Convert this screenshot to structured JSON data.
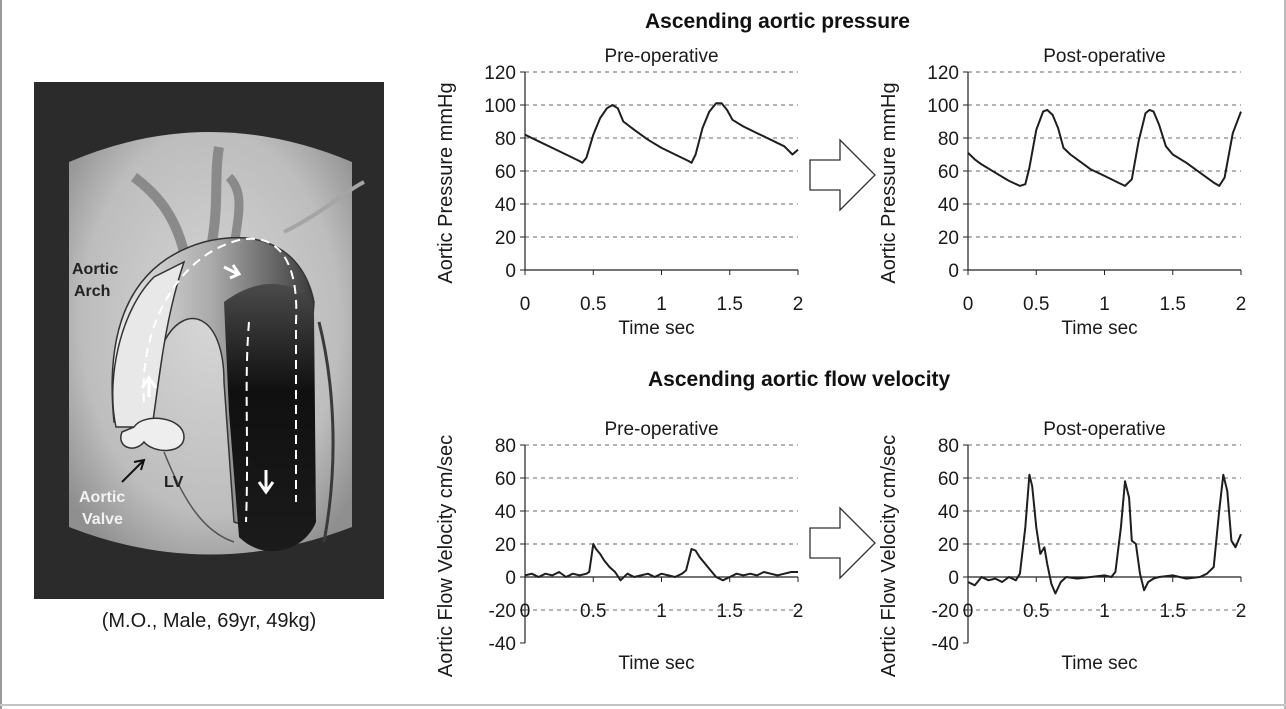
{
  "figure": {
    "caption": "(M.O., Male, 69yr, 49kg)",
    "image_labels": {
      "aortic_arch": [
        "Aortic",
        "Arch"
      ],
      "aortic_valve": [
        "Aortic",
        "Valve"
      ],
      "lv": "LV"
    },
    "section_titles": {
      "pressure": "Ascending aortic pressure",
      "flow": "Ascending aortic flow velocity"
    }
  },
  "colors": {
    "line": "#1e1e1e",
    "grid": "#6a6a6a",
    "angiogram_frame": "#2b2b2b"
  },
  "chart_data": [
    {
      "id": "pressure-pre",
      "type": "line",
      "title": "Pre-operative",
      "xlabel": "Time sec",
      "ylabel": "Aortic Pressure mmHg",
      "xlim": [
        0,
        2
      ],
      "ylim": [
        0,
        120
      ],
      "xticks": [
        0,
        0.5,
        1,
        1.5,
        2
      ],
      "xtick_labels": [
        "0",
        "0.5",
        "1",
        "1.5",
        "2"
      ],
      "yticks": [
        0,
        20,
        40,
        60,
        80,
        100,
        120
      ],
      "ytick_labels": [
        "0",
        "20",
        "40",
        "60",
        "80",
        "100",
        "120"
      ],
      "grid": true,
      "series": [
        {
          "x": [
            0,
            0.05,
            0.1,
            0.2,
            0.3,
            0.4,
            0.42,
            0.45,
            0.5,
            0.55,
            0.6,
            0.64,
            0.68,
            0.72,
            0.8,
            0.9,
            1.0,
            1.1,
            1.2,
            1.22,
            1.25,
            1.3,
            1.35,
            1.4,
            1.44,
            1.48,
            1.52,
            1.6,
            1.7,
            1.8,
            1.9,
            1.96,
            2.0
          ],
          "y": [
            82,
            80,
            78,
            74,
            70,
            66,
            65,
            68,
            82,
            92,
            98,
            100,
            98,
            90,
            85,
            79,
            74,
            70,
            66,
            65,
            70,
            86,
            96,
            101,
            101,
            97,
            91,
            87,
            83,
            79,
            75,
            70,
            73
          ]
        }
      ]
    },
    {
      "id": "pressure-post",
      "type": "line",
      "title": "Post-operative",
      "xlabel": "Time sec",
      "ylabel": "Aortic Pressure mmHg",
      "xlim": [
        0,
        2
      ],
      "ylim": [
        0,
        120
      ],
      "xticks": [
        0,
        0.5,
        1,
        1.5,
        2
      ],
      "xtick_labels": [
        "0",
        "0.5",
        "1",
        "1.5",
        "2"
      ],
      "yticks": [
        0,
        20,
        40,
        60,
        80,
        100,
        120
      ],
      "ytick_labels": [
        "0",
        "20",
        "40",
        "60",
        "80",
        "100",
        "120"
      ],
      "grid": true,
      "series": [
        {
          "x": [
            0,
            0.05,
            0.1,
            0.2,
            0.3,
            0.38,
            0.42,
            0.45,
            0.5,
            0.55,
            0.58,
            0.62,
            0.66,
            0.7,
            0.75,
            0.8,
            0.9,
            1.0,
            1.1,
            1.15,
            1.2,
            1.25,
            1.3,
            1.33,
            1.36,
            1.4,
            1.45,
            1.5,
            1.6,
            1.7,
            1.8,
            1.84,
            1.88,
            1.94,
            2.0
          ],
          "y": [
            71,
            67,
            64,
            59,
            54,
            51,
            52,
            62,
            85,
            96,
            97,
            94,
            86,
            74,
            70,
            67,
            61,
            57,
            53,
            51,
            55,
            78,
            95,
            97,
            96,
            88,
            75,
            70,
            65,
            59,
            53,
            51,
            56,
            83,
            96
          ]
        }
      ]
    },
    {
      "id": "flow-pre",
      "type": "line",
      "title": "Pre-operative",
      "xlabel": "Time sec",
      "ylabel": "Aortic Flow Velocity cm/sec",
      "xlim": [
        0,
        2
      ],
      "ylim": [
        -40,
        80
      ],
      "xticks": [
        0,
        0.5,
        1,
        1.5,
        2
      ],
      "xtick_labels": [
        "0",
        "0.5",
        "1",
        "1.5",
        "2"
      ],
      "yticks": [
        -40,
        -20,
        0,
        20,
        40,
        60,
        80
      ],
      "ytick_labels": [
        "-40",
        "-20",
        "0",
        "20",
        "40",
        "60",
        "80"
      ],
      "grid": true,
      "series": [
        {
          "x": [
            0,
            0.05,
            0.1,
            0.15,
            0.2,
            0.25,
            0.3,
            0.35,
            0.4,
            0.45,
            0.47,
            0.5,
            0.52,
            0.55,
            0.58,
            0.62,
            0.66,
            0.7,
            0.75,
            0.8,
            0.85,
            0.9,
            0.95,
            1.0,
            1.05,
            1.1,
            1.15,
            1.18,
            1.22,
            1.25,
            1.28,
            1.32,
            1.36,
            1.4,
            1.45,
            1.5,
            1.55,
            1.6,
            1.65,
            1.7,
            1.75,
            1.8,
            1.85,
            1.9,
            1.95,
            2.0
          ],
          "y": [
            1,
            2,
            0,
            2,
            1,
            3,
            0,
            2,
            1,
            2,
            3,
            20,
            17,
            14,
            10,
            6,
            3,
            -2,
            2,
            0,
            1,
            2,
            0,
            2,
            1,
            0,
            2,
            4,
            17,
            16,
            12,
            8,
            4,
            0,
            -2,
            0,
            2,
            1,
            2,
            1,
            3,
            2,
            1,
            2,
            3,
            3
          ]
        }
      ]
    },
    {
      "id": "flow-post",
      "type": "line",
      "title": "Post-operative",
      "xlabel": "Time sec",
      "ylabel": "Aortic Flow Velocity cm/sec",
      "xlim": [
        0,
        2
      ],
      "ylim": [
        -40,
        80
      ],
      "xticks": [
        0,
        0.5,
        1,
        1.5,
        2
      ],
      "xtick_labels": [
        "0",
        "0.5",
        "1",
        "1.5",
        "2"
      ],
      "yticks": [
        -40,
        -20,
        0,
        20,
        40,
        60,
        80
      ],
      "ytick_labels": [
        "-40",
        "-20",
        "0",
        "20",
        "40",
        "60",
        "80"
      ],
      "grid": true,
      "series": [
        {
          "x": [
            0,
            0.05,
            0.1,
            0.15,
            0.2,
            0.25,
            0.3,
            0.35,
            0.38,
            0.42,
            0.45,
            0.47,
            0.5,
            0.53,
            0.56,
            0.58,
            0.61,
            0.64,
            0.68,
            0.72,
            0.8,
            0.9,
            1.0,
            1.05,
            1.08,
            1.12,
            1.15,
            1.18,
            1.2,
            1.23,
            1.26,
            1.29,
            1.32,
            1.36,
            1.4,
            1.5,
            1.6,
            1.7,
            1.75,
            1.8,
            1.84,
            1.87,
            1.9,
            1.93,
            1.96,
            2.0
          ],
          "y": [
            -3,
            -5,
            0,
            -2,
            -1,
            -3,
            0,
            -2,
            2,
            30,
            62,
            55,
            30,
            14,
            18,
            8,
            -4,
            -10,
            -3,
            0,
            -1,
            0,
            1,
            0,
            3,
            30,
            58,
            48,
            22,
            20,
            2,
            -8,
            -3,
            -1,
            0,
            1,
            -1,
            0,
            2,
            6,
            40,
            62,
            52,
            22,
            18,
            26
          ]
        }
      ]
    }
  ]
}
